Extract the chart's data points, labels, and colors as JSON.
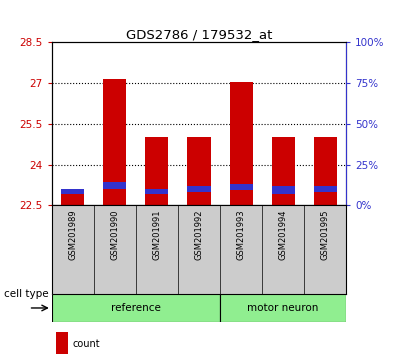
{
  "title": "GDS2786 / 179532_at",
  "samples": [
    "GSM201989",
    "GSM201990",
    "GSM201991",
    "GSM201992",
    "GSM201993",
    "GSM201994",
    "GSM201995"
  ],
  "red_tops": [
    23.1,
    27.15,
    25.0,
    25.0,
    27.05,
    25.0,
    25.0
  ],
  "blue_bottoms": [
    22.9,
    23.1,
    22.9,
    23.0,
    23.05,
    22.9,
    23.0
  ],
  "blue_tops": [
    23.1,
    23.35,
    23.1,
    23.2,
    23.3,
    23.2,
    23.2
  ],
  "bar_bottom": 22.5,
  "ylim_left": [
    22.5,
    28.5
  ],
  "ylim_right": [
    0,
    100
  ],
  "yticks_left": [
    22.5,
    24.0,
    25.5,
    27.0,
    28.5
  ],
  "ytick_labels_left": [
    "22.5",
    "24",
    "25.5",
    "27",
    "28.5"
  ],
  "yticks_right": [
    0,
    25,
    50,
    75,
    100
  ],
  "ytick_labels_right": [
    "0%",
    "25%",
    "50%",
    "75%",
    "100%"
  ],
  "dotted_lines": [
    24.0,
    25.5,
    27.0
  ],
  "bar_color": "#cc0000",
  "blue_color": "#3333cc",
  "bar_width": 0.55,
  "bg_plot": "#ffffff",
  "bg_sample_label": "#cccccc",
  "left_tick_color": "#cc0000",
  "right_tick_color": "#3333cc",
  "ref_count": 4,
  "mn_count": 3,
  "group_color": "#90EE90"
}
